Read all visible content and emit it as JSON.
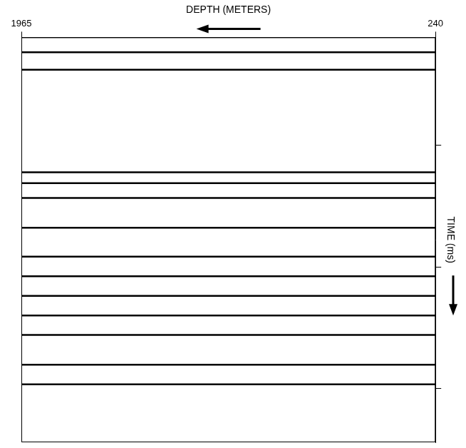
{
  "chart_data": {
    "type": "line",
    "x_label": "DEPTH (METERS)",
    "y_label": "TIME (ms)",
    "x": [
      1965,
      240
    ],
    "xlim": [
      1965,
      240
    ],
    "xticks": [
      1965,
      240
    ],
    "ylim": [
      600,
      0
    ],
    "yticks": [
      160,
      340,
      520
    ],
    "tick_labels": "x",
    "grid": false,
    "series": [
      {
        "color": "#000000",
        "values": [
          22,
          22
        ]
      },
      {
        "color": "#000000",
        "values": [
          48,
          48
        ]
      },
      {
        "color": "#000000",
        "values": [
          200,
          200
        ]
      },
      {
        "color": "#000000",
        "values": [
          216,
          216
        ]
      },
      {
        "color": "#000000",
        "values": [
          238,
          238
        ]
      },
      {
        "color": "#000000",
        "values": [
          282,
          282
        ]
      },
      {
        "color": "#000000",
        "values": [
          325,
          325
        ]
      },
      {
        "color": "#000000",
        "values": [
          354,
          354
        ]
      },
      {
        "color": "#000000",
        "values": [
          383,
          383
        ]
      },
      {
        "color": "#000000",
        "values": [
          412,
          412
        ]
      },
      {
        "color": "#000000",
        "values": [
          441,
          441
        ]
      },
      {
        "color": "#000000",
        "values": [
          485,
          485
        ]
      },
      {
        "color": "#000000",
        "values": [
          514,
          514
        ]
      }
    ]
  }
}
